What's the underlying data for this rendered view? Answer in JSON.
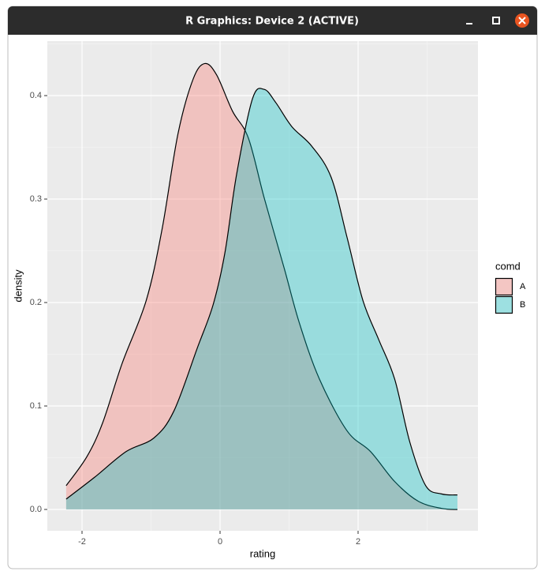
{
  "window": {
    "title": "R Graphics: Device 2 (ACTIVE)"
  },
  "chart_data": {
    "type": "density",
    "x_label": "rating",
    "y_label": "density",
    "legend_title": "comd",
    "legend_position": "right",
    "xlim": [
      -2.503,
      3.737
    ],
    "ylim": [
      -0.0206,
      0.4527
    ],
    "xticks": [
      -2,
      0,
      2
    ],
    "yticks": [
      {
        "value": 0,
        "label": "0.0"
      },
      0.1,
      0.2,
      0.3,
      0.4
    ],
    "grid": true,
    "series": [
      {
        "name": "A",
        "color": "#F8766D",
        "x": [
          -2.23,
          -1.93,
          -1.7,
          -1.42,
          -1.07,
          -0.84,
          -0.61,
          -0.39,
          -0.22,
          -0.05,
          0.18,
          0.41,
          0.64,
          0.93,
          1.15,
          1.44,
          1.84,
          2.18,
          2.53,
          2.87,
          3.21,
          3.44
        ],
        "values": [
          0.023,
          0.051,
          0.084,
          0.141,
          0.202,
          0.271,
          0.363,
          0.416,
          0.431,
          0.42,
          0.385,
          0.359,
          0.301,
          0.233,
          0.18,
          0.126,
          0.076,
          0.056,
          0.027,
          0.008,
          0.001,
          0.0
        ]
      },
      {
        "name": "B",
        "color": "#00BFC4",
        "x": [
          -2.23,
          -1.82,
          -1.36,
          -0.96,
          -0.67,
          -0.33,
          -0.1,
          0.07,
          0.24,
          0.47,
          0.64,
          0.81,
          1.04,
          1.33,
          1.61,
          1.84,
          2.07,
          2.3,
          2.53,
          2.75,
          2.98,
          3.21,
          3.44
        ],
        "values": [
          0.01,
          0.031,
          0.056,
          0.069,
          0.095,
          0.156,
          0.198,
          0.248,
          0.324,
          0.397,
          0.406,
          0.393,
          0.37,
          0.351,
          0.321,
          0.263,
          0.202,
          0.164,
          0.126,
          0.065,
          0.023,
          0.015,
          0.014
        ]
      }
    ]
  }
}
